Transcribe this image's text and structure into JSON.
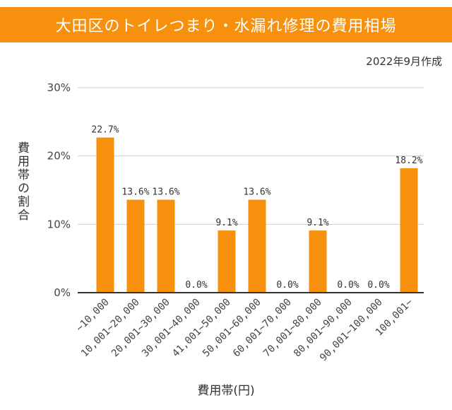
{
  "chart_data": {
    "type": "bar",
    "title": "大田区のトイレつまり・水漏れ修理の費用相場",
    "subtitle": "2022年9月作成",
    "xlabel": "費用帯(円)",
    "ylabel": "費用帯の割合",
    "ylim": [
      0,
      30
    ],
    "yticks": [
      "0%",
      "10%",
      "20%",
      "30%"
    ],
    "yticks_values": [
      0,
      10,
      20,
      30
    ],
    "grid": true,
    "bar_color": "#f6900d",
    "categories": [
      "~10,000",
      "10,001~20,000",
      "20,001~30,000",
      "30,001~40,000",
      "41,001~50,000",
      "50,001~60,000",
      "60,001~70,000",
      "70,001~80,000",
      "80,001~90,000",
      "90,001~100,000",
      "100,001~"
    ],
    "values": [
      22.7,
      13.6,
      13.6,
      0.0,
      9.1,
      13.6,
      0.0,
      9.1,
      0.0,
      0.0,
      18.2
    ],
    "value_labels": [
      "22.7%",
      "13.6%",
      "13.6%",
      "0.0%",
      "9.1%",
      "13.6%",
      "0.0%",
      "9.1%",
      "0.0%",
      "0.0%",
      "18.2%"
    ]
  }
}
